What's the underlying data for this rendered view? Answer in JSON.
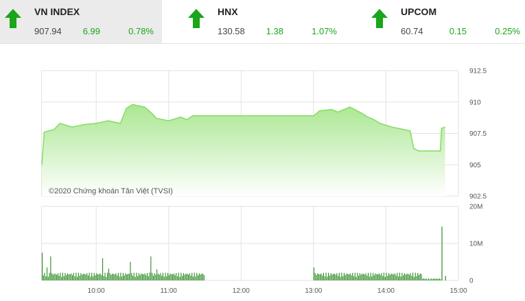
{
  "colors": {
    "up": "#1aa51a",
    "price_line": "#84dc62",
    "area_top": "#a6e68c",
    "area_bottom": "#ffffff",
    "volume": "#2c8a22",
    "grid": "#e2e2e2"
  },
  "indices": [
    {
      "name": "VN INDEX",
      "price": "907.94",
      "change": "6.99",
      "percent": "0.78%",
      "direction": "up-arrow-icon",
      "active": true
    },
    {
      "name": "HNX",
      "price": "130.58",
      "change": "1.38",
      "percent": "1.07%",
      "direction": "up-arrow-icon",
      "active": false
    },
    {
      "name": "UPCOM",
      "price": "60.74",
      "change": "0.15",
      "percent": "0.25%",
      "direction": "up-arrow-icon",
      "active": false
    }
  ],
  "chart_data": {
    "type": "area",
    "watermark": "©2020 Chứng khoán Tân Việt (TVSI)",
    "x_ticks": [
      "10:00",
      "11:00",
      "12:00",
      "13:00",
      "14:00",
      "15:00"
    ],
    "price": {
      "y_ticks": [
        "912.5",
        "910",
        "907.5",
        "905",
        "902.5"
      ],
      "ylim": [
        902.5,
        912.5
      ],
      "points": [
        [
          "09:15",
          905.0
        ],
        [
          "09:17",
          907.6
        ],
        [
          "09:25",
          907.8
        ],
        [
          "09:30",
          908.3
        ],
        [
          "09:40",
          908.0
        ],
        [
          "09:50",
          908.2
        ],
        [
          "10:00",
          908.3
        ],
        [
          "10:10",
          908.5
        ],
        [
          "10:15",
          908.4
        ],
        [
          "10:20",
          908.3
        ],
        [
          "10:25",
          909.5
        ],
        [
          "10:30",
          909.8
        ],
        [
          "10:40",
          909.6
        ],
        [
          "10:45",
          909.2
        ],
        [
          "10:50",
          908.7
        ],
        [
          "11:00",
          908.5
        ],
        [
          "11:10",
          908.8
        ],
        [
          "11:15",
          908.6
        ],
        [
          "11:20",
          908.9
        ],
        [
          "11:30",
          908.9
        ],
        [
          "13:00",
          908.9
        ],
        [
          "13:05",
          909.3
        ],
        [
          "13:15",
          909.4
        ],
        [
          "13:20",
          909.2
        ],
        [
          "13:30",
          909.6
        ],
        [
          "13:40",
          909.1
        ],
        [
          "13:45",
          908.8
        ],
        [
          "13:50",
          908.6
        ],
        [
          "13:55",
          908.3
        ],
        [
          "14:05",
          908.0
        ],
        [
          "14:15",
          907.8
        ],
        [
          "14:20",
          907.7
        ],
        [
          "14:23",
          906.3
        ],
        [
          "14:27",
          906.1
        ],
        [
          "14:35",
          906.1
        ],
        [
          "14:45",
          906.1
        ],
        [
          "14:46",
          907.9
        ],
        [
          "14:49",
          908.0
        ]
      ]
    },
    "volume": {
      "y_ticks": [
        "20M",
        "10M",
        "0"
      ],
      "ylim": [
        0,
        20000000
      ],
      "sessions": [
        {
          "start": "09:15",
          "end": "11:30",
          "base": 1500000
        },
        {
          "start": "13:00",
          "end": "14:30",
          "base": 1500000
        },
        {
          "start": "14:30",
          "end": "14:46",
          "base": 400000
        }
      ],
      "spikes": [
        [
          "09:15",
          7500000
        ],
        [
          "09:19",
          3500000
        ],
        [
          "09:22",
          6500000
        ],
        [
          "10:05",
          6000000
        ],
        [
          "10:10",
          3200000
        ],
        [
          "10:28",
          5000000
        ],
        [
          "10:45",
          6500000
        ],
        [
          "10:50",
          3000000
        ],
        [
          "13:00",
          3500000
        ],
        [
          "14:46",
          14500000
        ],
        [
          "14:49",
          1200000
        ]
      ]
    }
  }
}
